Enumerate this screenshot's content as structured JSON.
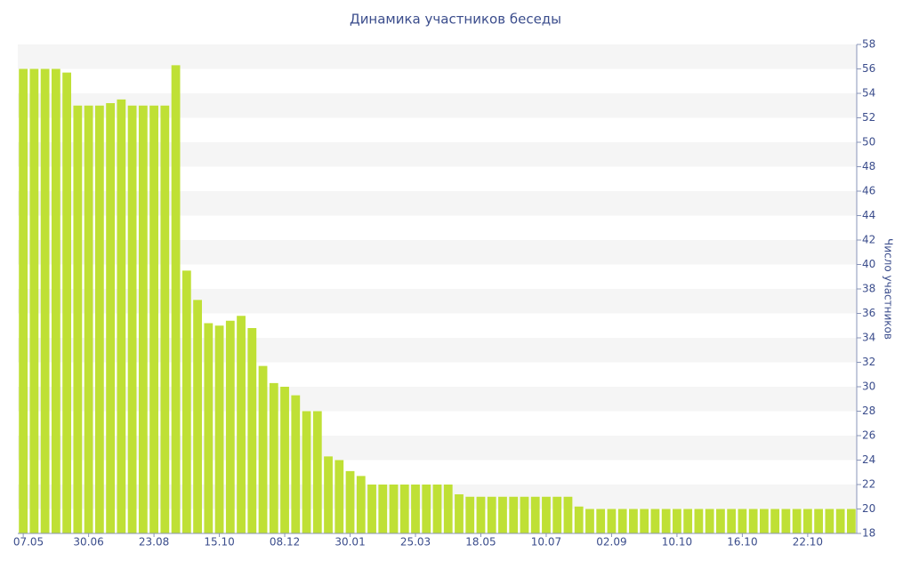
{
  "chart_data": {
    "type": "bar",
    "title": "Динамика участников беседы",
    "y_label": "Число участников",
    "color": "#bfe035",
    "grid": true,
    "y_axis_side": "right",
    "categories": [
      "07.05",
      null,
      null,
      null,
      null,
      null,
      "30.06",
      null,
      null,
      null,
      null,
      null,
      "23.08",
      null,
      null,
      null,
      null,
      null,
      "15.10",
      null,
      null,
      null,
      null,
      null,
      "08.12",
      null,
      null,
      null,
      null,
      null,
      "30.01",
      null,
      null,
      null,
      null,
      null,
      "25.03",
      null,
      null,
      null,
      null,
      null,
      "18.05",
      null,
      null,
      null,
      null,
      null,
      "10.07",
      null,
      null,
      null,
      null,
      null,
      "02.09",
      null,
      null,
      null,
      null,
      null,
      "10.10",
      null,
      null,
      null,
      null,
      null,
      "16.10",
      null,
      null,
      null,
      null,
      null,
      "22.10",
      null,
      null,
      null,
      null
    ],
    "values": [
      56,
      56,
      56,
      56,
      55.7,
      53,
      53,
      53,
      53.2,
      53.5,
      53,
      53,
      53,
      53,
      56.3,
      39.5,
      37.1,
      35.2,
      35,
      35.4,
      35.8,
      34.8,
      31.7,
      30.3,
      30,
      29.3,
      28,
      28,
      24.3,
      24,
      23.1,
      22.7,
      22,
      22,
      22,
      22,
      22,
      22,
      22,
      22,
      21.2,
      21,
      21,
      21,
      21,
      21,
      21,
      21,
      21,
      21,
      21,
      20.2,
      20,
      20,
      20,
      20,
      20,
      20,
      20,
      20,
      20,
      20,
      20,
      20,
      20,
      20,
      20,
      20,
      20,
      20,
      20,
      20,
      20,
      20,
      20,
      20,
      20
    ],
    "ylim": [
      18,
      58
    ],
    "yticks": [
      18,
      20,
      22,
      24,
      26,
      28,
      30,
      32,
      34,
      36,
      38,
      40,
      42,
      44,
      46,
      48,
      50,
      52,
      54,
      56,
      58
    ]
  }
}
